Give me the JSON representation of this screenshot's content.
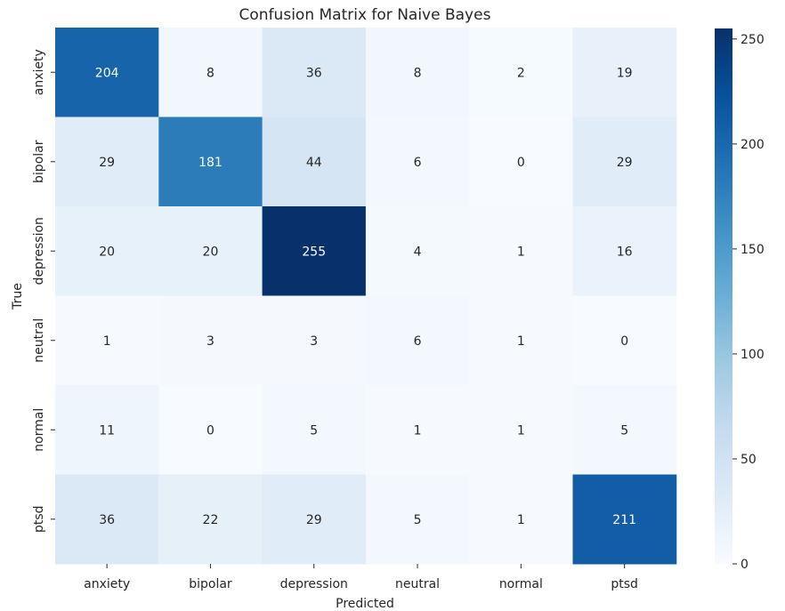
{
  "chart_data": {
    "type": "heatmap",
    "title": "Confusion Matrix for Naive Bayes",
    "xlabel": "Predicted",
    "ylabel": "True",
    "x_categories": [
      "anxiety",
      "bipolar",
      "depression",
      "neutral",
      "normal",
      "ptsd"
    ],
    "y_categories": [
      "anxiety",
      "bipolar",
      "depression",
      "neutral",
      "normal",
      "ptsd"
    ],
    "values": [
      [
        204,
        8,
        36,
        8,
        2,
        19
      ],
      [
        29,
        181,
        44,
        6,
        0,
        29
      ],
      [
        20,
        20,
        255,
        4,
        1,
        16
      ],
      [
        1,
        3,
        3,
        6,
        1,
        0
      ],
      [
        11,
        0,
        5,
        1,
        1,
        5
      ],
      [
        36,
        22,
        29,
        5,
        1,
        211
      ]
    ],
    "colormap": "Blues",
    "colormap_stops": [
      "#f7fbff",
      "#deebf7",
      "#c6dbef",
      "#9ecae1",
      "#6baed6",
      "#4292c6",
      "#2171b5",
      "#08519c",
      "#08306b"
    ],
    "value_range": [
      0,
      255
    ],
    "colorbar_ticks": [
      0,
      50,
      100,
      150,
      200,
      250
    ],
    "annotations": true
  }
}
